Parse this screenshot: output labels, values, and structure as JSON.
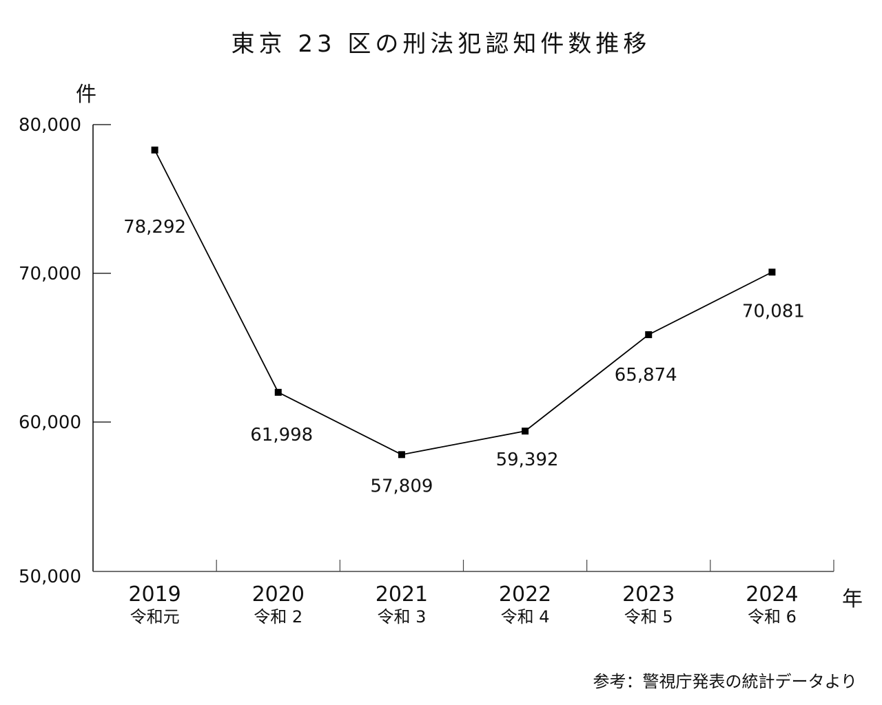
{
  "title": "東京 23 区の刑法犯認知件数推移",
  "y_unit_label": "件",
  "x_unit_label": "年",
  "source_note": "参考：警視庁発表の統計データより",
  "chart_data": {
    "type": "line",
    "title": "東京 23 区の刑法犯認知件数推移",
    "xlabel": "年",
    "ylabel": "件",
    "categories": [
      "2019",
      "2020",
      "2021",
      "2022",
      "2023",
      "2024"
    ],
    "era_labels": [
      "令和元",
      "令和 2",
      "令和 3",
      "令和 4",
      "令和 5",
      "令和 6"
    ],
    "series": [
      {
        "name": "刑法犯認知件数",
        "values": [
          78292,
          61998,
          57809,
          59392,
          65874,
          70081
        ],
        "value_labels": [
          "78,292",
          "61,998",
          "57,809",
          "59,392",
          "65,874",
          "70,081"
        ],
        "marker": "square",
        "color": "#000000"
      }
    ],
    "ylim": [
      50000,
      80000
    ],
    "yticks": [
      50000,
      60000,
      70000,
      80000
    ],
    "ytick_labels": [
      "50,000",
      "60,000",
      "70,000",
      "80,000"
    ],
    "grid": false,
    "legend": null,
    "source": "参考：警視庁発表の統計データより"
  }
}
